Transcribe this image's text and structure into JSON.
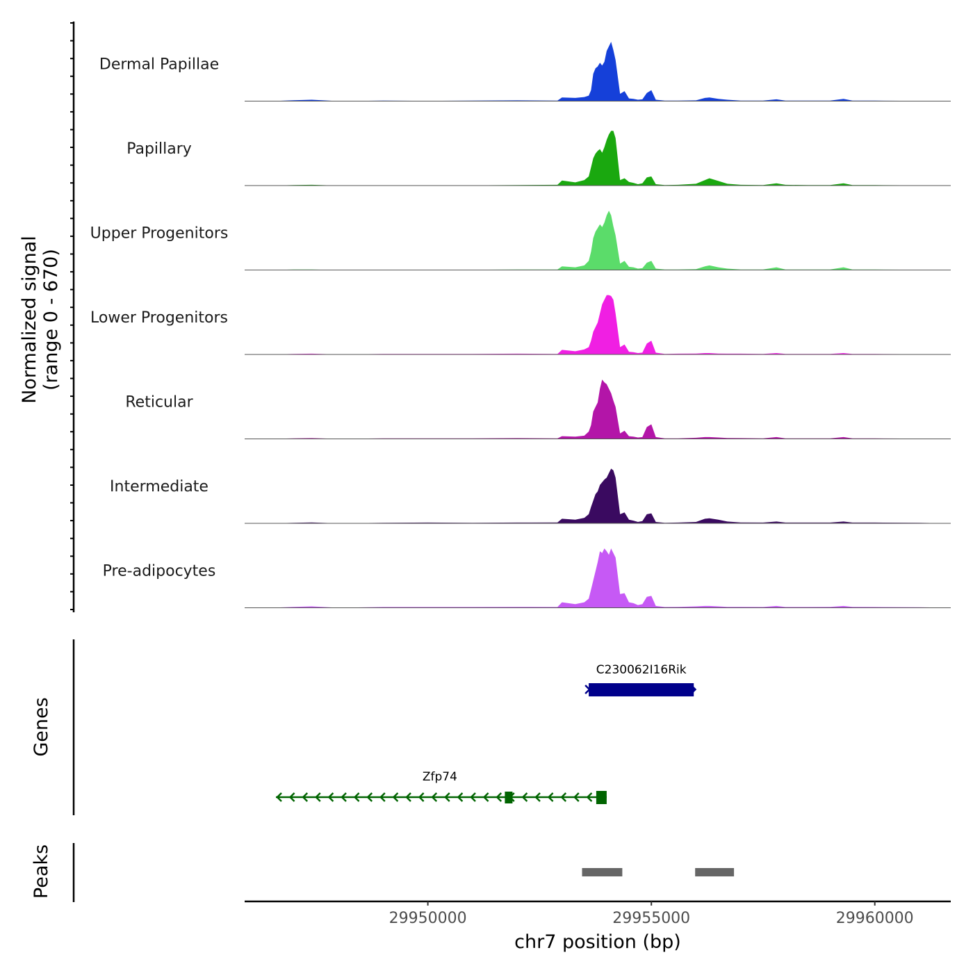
{
  "chart_data": {
    "type": "area",
    "title": "",
    "ylabel_line1": "Normalized signal",
    "ylabel_line2": "(range 0 - 670)",
    "y_range": [
      0,
      670
    ],
    "xlabel": "chr7 position (bp)",
    "x_range": [
      29945900,
      29961700
    ],
    "x_ticks": [
      29950000,
      29955000,
      29960000
    ],
    "x_tick_labels": [
      "29950000",
      "29955000",
      "29960000"
    ],
    "tracks": [
      {
        "name": "Dermal Papillae",
        "color": "#1540d9"
      },
      {
        "name": "Papillary",
        "color": "#1aa80f"
      },
      {
        "name": "Upper Progenitors",
        "color": "#5bdc6a"
      },
      {
        "name": "Lower Progenitors",
        "color": "#f01fe3"
      },
      {
        "name": "Reticular",
        "color": "#b315a8"
      },
      {
        "name": "Intermediate",
        "color": "#3a0a60"
      },
      {
        "name": "Pre-adipocytes",
        "color": "#c659f5"
      }
    ],
    "signal": {
      "x": [
        29945900,
        29946500,
        29947000,
        29947400,
        29948000,
        29949000,
        29950000,
        29951000,
        29952000,
        29952900,
        29953000,
        29953300,
        29953500,
        29953600,
        29953650,
        29953700,
        29953750,
        29953800,
        29953850,
        29953900,
        29953950,
        29954000,
        29954050,
        29954100,
        29954150,
        29954200,
        29954300,
        29954400,
        29954500,
        29954600,
        29954700,
        29954800,
        29954900,
        29955000,
        29955100,
        29955300,
        29955600,
        29956000,
        29956200,
        29956300,
        29956500,
        29956700,
        29957000,
        29957500,
        29957800,
        29958000,
        29958500,
        29959000,
        29959300,
        29959500,
        29960000,
        29961000,
        29961700
      ],
      "values": [
        [
          0,
          0,
          10,
          15,
          0,
          5,
          3,
          5,
          8,
          5,
          40,
          35,
          45,
          60,
          120,
          300,
          360,
          380,
          420,
          390,
          430,
          550,
          600,
          650,
          560,
          450,
          80,
          110,
          30,
          25,
          15,
          20,
          90,
          120,
          15,
          5,
          5,
          8,
          35,
          40,
          25,
          15,
          6,
          5,
          20,
          5,
          5,
          5,
          25,
          5,
          5,
          3,
          0
        ],
        [
          0,
          0,
          5,
          8,
          0,
          3,
          3,
          3,
          5,
          8,
          55,
          35,
          60,
          100,
          200,
          300,
          350,
          380,
          400,
          360,
          420,
          500,
          560,
          600,
          600,
          520,
          60,
          80,
          40,
          30,
          15,
          25,
          90,
          100,
          15,
          5,
          8,
          20,
          60,
          80,
          50,
          20,
          8,
          5,
          25,
          8,
          5,
          5,
          25,
          5,
          5,
          3,
          0
        ],
        [
          0,
          0,
          5,
          5,
          0,
          3,
          3,
          3,
          5,
          5,
          40,
          30,
          50,
          100,
          200,
          350,
          420,
          460,
          500,
          470,
          520,
          600,
          650,
          600,
          480,
          380,
          70,
          100,
          35,
          30,
          15,
          20,
          80,
          100,
          15,
          5,
          5,
          10,
          40,
          50,
          30,
          15,
          5,
          5,
          30,
          5,
          5,
          5,
          30,
          5,
          5,
          3,
          0
        ],
        [
          0,
          0,
          5,
          8,
          0,
          5,
          5,
          5,
          8,
          5,
          50,
          35,
          55,
          80,
          150,
          250,
          300,
          350,
          450,
          550,
          600,
          650,
          650,
          640,
          600,
          450,
          80,
          110,
          30,
          25,
          15,
          20,
          120,
          150,
          20,
          5,
          8,
          10,
          15,
          15,
          10,
          8,
          8,
          5,
          15,
          5,
          5,
          5,
          15,
          5,
          5,
          3,
          0
        ],
        [
          0,
          0,
          5,
          8,
          0,
          5,
          5,
          5,
          8,
          5,
          30,
          25,
          35,
          80,
          150,
          300,
          350,
          400,
          550,
          650,
          620,
          600,
          550,
          500,
          420,
          350,
          60,
          90,
          30,
          25,
          15,
          20,
          130,
          160,
          20,
          5,
          5,
          12,
          20,
          20,
          15,
          10,
          8,
          5,
          20,
          5,
          5,
          5,
          20,
          5,
          5,
          3,
          0
        ],
        [
          0,
          0,
          5,
          10,
          0,
          5,
          8,
          5,
          8,
          10,
          50,
          40,
          60,
          100,
          180,
          250,
          320,
          350,
          420,
          450,
          480,
          500,
          550,
          600,
          580,
          500,
          100,
          120,
          40,
          30,
          15,
          25,
          100,
          110,
          15,
          5,
          8,
          15,
          50,
          55,
          40,
          20,
          10,
          8,
          20,
          8,
          8,
          8,
          20,
          8,
          8,
          5,
          0
        ],
        [
          0,
          0,
          10,
          15,
          0,
          8,
          8,
          8,
          10,
          8,
          60,
          40,
          60,
          100,
          200,
          300,
          400,
          500,
          620,
          600,
          650,
          620,
          580,
          650,
          600,
          550,
          150,
          160,
          60,
          50,
          30,
          40,
          120,
          130,
          20,
          8,
          10,
          15,
          20,
          20,
          15,
          10,
          10,
          8,
          20,
          8,
          8,
          10,
          20,
          10,
          8,
          5,
          0
        ]
      ]
    },
    "genes": [
      {
        "name": "C230062I16Rik",
        "start": 29953600,
        "end": 29955950,
        "strand": "+",
        "color": "#00008b"
      },
      {
        "name": "Zfp74",
        "start": 29946600,
        "end": 29954000,
        "strand": "-",
        "color": "#006400"
      }
    ],
    "peaks": [
      {
        "start": 29953450,
        "end": 29954350
      },
      {
        "start": 29955980,
        "end": 29956850
      }
    ],
    "panel_labels": {
      "genes": "Genes",
      "peaks": "Peaks"
    }
  }
}
